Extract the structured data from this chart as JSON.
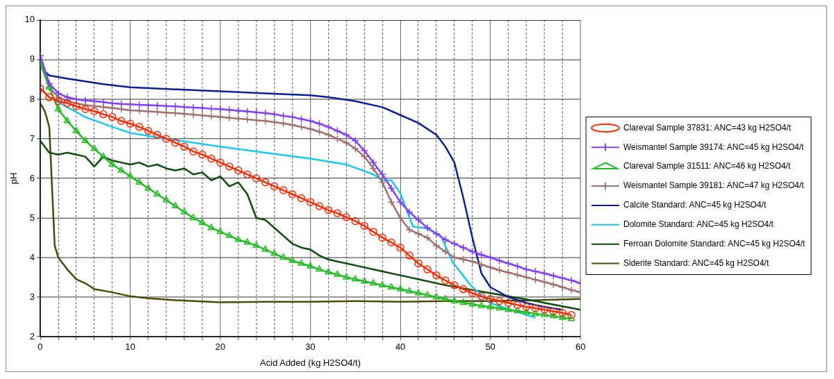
{
  "chart_data": {
    "type": "line",
    "xlabel": "Acid Added (kg H2SO4/t)",
    "ylabel": "pH",
    "xlim": [
      0,
      60
    ],
    "ylim": [
      2,
      10
    ],
    "xticks": [
      0,
      {
        "value": 2,
        "label": null
      },
      {
        "value": 4,
        "label": null
      },
      {
        "value": 6,
        "label": null
      },
      {
        "value": 8,
        "label": null
      },
      10,
      {
        "value": 12,
        "label": null
      },
      {
        "value": 14,
        "label": null
      },
      {
        "value": 16,
        "label": null
      },
      {
        "value": 18,
        "label": null
      },
      20,
      {
        "value": 22,
        "label": null
      },
      {
        "value": 24,
        "label": null
      },
      {
        "value": 26,
        "label": null
      },
      {
        "value": 28,
        "label": null
      },
      30,
      {
        "value": 32,
        "label": null
      },
      {
        "value": 34,
        "label": null
      },
      {
        "value": 36,
        "label": null
      },
      {
        "value": 38,
        "label": null
      },
      40,
      {
        "value": 42,
        "label": null
      },
      {
        "value": 44,
        "label": null
      },
      {
        "value": 46,
        "label": null
      },
      {
        "value": 48,
        "label": null
      },
      50,
      {
        "value": 52,
        "label": null
      },
      {
        "value": 54,
        "label": null
      },
      {
        "value": 56,
        "label": null
      },
      {
        "value": 58,
        "label": null
      },
      60
    ],
    "yticks": [
      2,
      3,
      4,
      5,
      6,
      7,
      8,
      9,
      10
    ],
    "grid": true,
    "legend": "right",
    "line_style": "solid",
    "series": [
      {
        "name": "Clareval Sample 37831: ANC=43 kg H2SO4/t",
        "color": "#ff2a00",
        "marker": "circle",
        "x": [
          0,
          1,
          2,
          3,
          4,
          5,
          6,
          7,
          8,
          9,
          10,
          11,
          12,
          13,
          14,
          15,
          16,
          17,
          18,
          19,
          20,
          21,
          22,
          23,
          24,
          25,
          26,
          27,
          28,
          29,
          30,
          31,
          32,
          33,
          34,
          35,
          36,
          37,
          38,
          39,
          40,
          41,
          42,
          43,
          44,
          45,
          46,
          47,
          48,
          49,
          50,
          51,
          52,
          53,
          54,
          55,
          56,
          57,
          58,
          59
        ],
        "values": [
          8.27,
          8.05,
          7.95,
          7.9,
          7.82,
          7.75,
          7.7,
          7.62,
          7.55,
          7.45,
          7.38,
          7.3,
          7.2,
          7.1,
          7.0,
          6.9,
          6.8,
          6.68,
          6.6,
          6.5,
          6.4,
          6.3,
          6.2,
          6.1,
          6.0,
          5.9,
          5.8,
          5.7,
          5.6,
          5.5,
          5.4,
          5.3,
          5.2,
          5.12,
          5.02,
          4.92,
          4.8,
          4.65,
          4.5,
          4.38,
          4.25,
          4.05,
          3.85,
          3.7,
          3.55,
          3.42,
          3.3,
          3.2,
          3.1,
          3.02,
          2.95,
          2.9,
          2.85,
          2.8,
          2.75,
          2.72,
          2.68,
          2.64,
          2.6,
          2.55
        ]
      },
      {
        "name": "Weismantel Sample 39174: ANC=45 kg H2SO4/t",
        "color": "#8040ff",
        "marker": "cross",
        "x": [
          0,
          1,
          2,
          3,
          4,
          5,
          6,
          7,
          8,
          9,
          10,
          11,
          12,
          13,
          14,
          15,
          16,
          17,
          18,
          19,
          20,
          21,
          22,
          23,
          24,
          25,
          26,
          27,
          28,
          29,
          30,
          31,
          32,
          33,
          34,
          35,
          36,
          37,
          38,
          39,
          40,
          41,
          42,
          43,
          44,
          45,
          46,
          47,
          48,
          49,
          50,
          51,
          52,
          53,
          54,
          55,
          56,
          57,
          58,
          59,
          60
        ],
        "values": [
          9.1,
          8.4,
          8.15,
          8.05,
          8.0,
          7.97,
          7.95,
          7.93,
          7.9,
          7.88,
          7.87,
          7.86,
          7.85,
          7.84,
          7.83,
          7.82,
          7.8,
          7.79,
          7.78,
          7.76,
          7.75,
          7.73,
          7.71,
          7.69,
          7.67,
          7.65,
          7.62,
          7.58,
          7.55,
          7.5,
          7.45,
          7.38,
          7.3,
          7.2,
          7.1,
          6.95,
          6.7,
          6.4,
          6.1,
          5.75,
          5.4,
          5.15,
          4.95,
          4.75,
          4.6,
          4.45,
          4.35,
          4.25,
          4.15,
          4.07,
          4.0,
          3.92,
          3.85,
          3.78,
          3.7,
          3.65,
          3.6,
          3.54,
          3.48,
          3.42,
          3.35
        ]
      },
      {
        "name": "Clareval Sample 31511: ANC=46 kg H2SO4/t",
        "color": "#22bb22",
        "marker": "triangle",
        "x": [
          0,
          1,
          2,
          3,
          4,
          5,
          6,
          7,
          8,
          9,
          10,
          11,
          12,
          13,
          14,
          15,
          16,
          17,
          18,
          19,
          20,
          21,
          22,
          23,
          24,
          25,
          26,
          27,
          28,
          29,
          30,
          31,
          32,
          33,
          34,
          35,
          36,
          37,
          38,
          39,
          40,
          41,
          42,
          43,
          44,
          45,
          46,
          47,
          48,
          49,
          50,
          51,
          52,
          53,
          54,
          55,
          56,
          57,
          58,
          59
        ],
        "values": [
          8.95,
          8.3,
          7.75,
          7.45,
          7.2,
          6.95,
          6.75,
          6.55,
          6.35,
          6.2,
          6.05,
          5.9,
          5.75,
          5.6,
          5.45,
          5.3,
          5.15,
          5.0,
          4.88,
          4.75,
          4.65,
          4.55,
          4.45,
          4.38,
          4.3,
          4.2,
          4.1,
          4.0,
          3.92,
          3.85,
          3.78,
          3.7,
          3.63,
          3.57,
          3.5,
          3.45,
          3.4,
          3.35,
          3.3,
          3.25,
          3.2,
          3.15,
          3.1,
          3.05,
          3.0,
          2.95,
          2.9,
          2.86,
          2.82,
          2.78,
          2.75,
          2.72,
          2.68,
          2.65,
          2.62,
          2.58,
          2.55,
          2.52,
          2.48,
          2.45
        ]
      },
      {
        "name": "Weismantel Sample 39181: ANC=47 kg H2SO4/t",
        "color": "#a07070",
        "marker": "cross",
        "x": [
          0,
          1,
          2,
          3,
          4,
          5,
          6,
          7,
          8,
          9,
          10,
          11,
          12,
          13,
          14,
          15,
          16,
          17,
          18,
          19,
          20,
          21,
          22,
          23,
          24,
          25,
          26,
          27,
          28,
          29,
          30,
          31,
          32,
          33,
          34,
          35,
          36,
          37,
          38,
          39,
          40,
          41,
          42,
          43,
          44,
          45,
          46,
          47,
          48,
          49,
          50,
          51,
          52,
          53,
          54,
          55,
          56,
          57,
          58,
          59,
          60
        ],
        "values": [
          8.9,
          8.3,
          8.05,
          7.95,
          7.9,
          7.85,
          7.83,
          7.8,
          7.78,
          7.75,
          7.72,
          7.71,
          7.69,
          7.68,
          7.66,
          7.65,
          7.63,
          7.61,
          7.59,
          7.57,
          7.55,
          7.53,
          7.51,
          7.49,
          7.47,
          7.45,
          7.42,
          7.39,
          7.35,
          7.3,
          7.25,
          7.18,
          7.1,
          7.0,
          6.9,
          6.75,
          6.55,
          6.25,
          5.9,
          5.4,
          5.0,
          4.7,
          4.6,
          4.5,
          4.3,
          4.15,
          4.0,
          3.95,
          3.9,
          3.82,
          3.75,
          3.68,
          3.62,
          3.56,
          3.5,
          3.44,
          3.38,
          3.32,
          3.25,
          3.18,
          3.12
        ]
      },
      {
        "name": "Calcite Standard: ANC=45 kg H2SO4/t",
        "color": "#0a1e96",
        "marker": "none",
        "x": [
          0,
          0.5,
          1,
          3,
          5,
          7,
          10,
          15,
          20,
          25,
          30,
          32,
          35,
          38,
          40,
          42,
          44,
          45,
          46,
          47,
          48,
          49,
          50,
          52,
          54,
          56,
          58
        ],
        "values": [
          8.9,
          8.7,
          8.6,
          8.52,
          8.45,
          8.38,
          8.3,
          8.25,
          8.2,
          8.15,
          8.1,
          8.05,
          7.95,
          7.8,
          7.6,
          7.4,
          7.1,
          6.8,
          6.4,
          5.5,
          4.5,
          3.6,
          3.25,
          3.0,
          2.85,
          2.75,
          2.68
        ]
      },
      {
        "name": "Dolomite Standard: ANC=45 kg H2SO4/t",
        "color": "#18c8f0",
        "marker": "none",
        "x": [
          0,
          1,
          3,
          5,
          8,
          10,
          14,
          20,
          25,
          30,
          34,
          37,
          38,
          39,
          40,
          41.4,
          42.9,
          44.5,
          45.8,
          47.8,
          50,
          52,
          55
        ],
        "values": [
          8.3,
          8.05,
          7.8,
          7.55,
          7.3,
          7.15,
          7.0,
          6.8,
          6.65,
          6.5,
          6.35,
          6.1,
          5.95,
          5.95,
          5.62,
          4.78,
          4.74,
          4.55,
          3.88,
          3.3,
          2.85,
          2.7,
          2.48
        ]
      },
      {
        "name": "Ferroan Dolomite Standard: ANC=45 kg H2SO4/t",
        "color": "#0e4a0e",
        "marker": "none",
        "x": [
          0,
          1,
          2,
          3,
          4,
          5,
          6,
          7,
          8,
          9,
          10,
          11,
          12,
          13,
          14,
          15,
          16,
          17,
          18,
          19,
          20,
          21,
          22,
          23,
          24,
          25,
          26,
          27,
          28,
          29,
          30,
          31,
          32,
          33,
          34,
          35,
          38,
          40,
          42,
          45,
          50,
          55,
          60
        ],
        "values": [
          6.95,
          6.65,
          6.6,
          6.65,
          6.6,
          6.55,
          6.3,
          6.55,
          6.45,
          6.4,
          6.35,
          6.4,
          6.3,
          6.35,
          6.25,
          6.2,
          6.25,
          6.1,
          6.15,
          5.95,
          6.05,
          5.8,
          5.9,
          5.6,
          5.0,
          4.95,
          4.75,
          4.55,
          4.35,
          4.25,
          4.2,
          4.05,
          3.95,
          3.9,
          3.85,
          3.8,
          3.65,
          3.55,
          3.45,
          3.3,
          3.1,
          2.9,
          2.68
        ]
      },
      {
        "name": "Siderite Standard: ANC=45 kg H2SO4/t",
        "color": "#4a4a0a",
        "marker": "none",
        "x": [
          0,
          0.5,
          1,
          1.3,
          1.6,
          2,
          3,
          4,
          5,
          6,
          8,
          10,
          12,
          15,
          20,
          25,
          30,
          35,
          40,
          45,
          50,
          55,
          60
        ],
        "values": [
          7.9,
          7.7,
          7.3,
          5.8,
          4.3,
          4.0,
          3.7,
          3.45,
          3.35,
          3.2,
          3.12,
          3.02,
          2.97,
          2.92,
          2.87,
          2.88,
          2.88,
          2.9,
          2.88,
          2.9,
          2.9,
          2.92,
          2.95
        ]
      }
    ]
  }
}
